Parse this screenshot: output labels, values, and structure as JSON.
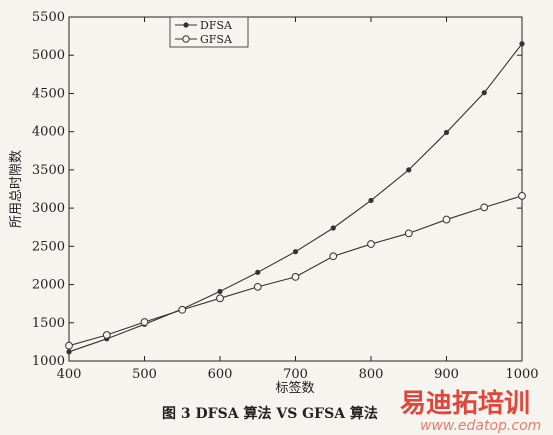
{
  "chart_data": {
    "type": "line",
    "x": [
      400,
      450,
      500,
      550,
      600,
      650,
      700,
      750,
      800,
      850,
      900,
      950,
      1000
    ],
    "series": [
      {
        "name": "DFSA",
        "marker": "filled-dot",
        "values": [
          1120,
          1290,
          1480,
          1680,
          1910,
          2160,
          2430,
          2740,
          3100,
          3500,
          3990,
          4510,
          5150
        ]
      },
      {
        "name": "GFSA",
        "marker": "open-circle",
        "values": [
          1200,
          1340,
          1510,
          1670,
          1820,
          1970,
          2100,
          2370,
          2530,
          2670,
          2850,
          3010,
          3160
        ]
      }
    ],
    "xlim": [
      400,
      1000
    ],
    "ylim": [
      1000,
      5500
    ],
    "xticks": [
      "400",
      "500",
      "600",
      "700",
      "800",
      "900",
      "1000"
    ],
    "yticks": [
      "1000",
      "1500",
      "2000",
      "2500",
      "3000",
      "3500",
      "4000",
      "4500",
      "5000",
      "5500"
    ],
    "xlabel": "标签数",
    "ylabel": "所用总时隙数",
    "caption": "图 3 DFSA 算法 VS GFSA 算法",
    "grid": false,
    "legend_position": "top-left",
    "line_color": "#333333"
  },
  "watermark": {
    "text": "易迪拓培训",
    "url": "www.edatop.com",
    "color": "#e0463a"
  }
}
